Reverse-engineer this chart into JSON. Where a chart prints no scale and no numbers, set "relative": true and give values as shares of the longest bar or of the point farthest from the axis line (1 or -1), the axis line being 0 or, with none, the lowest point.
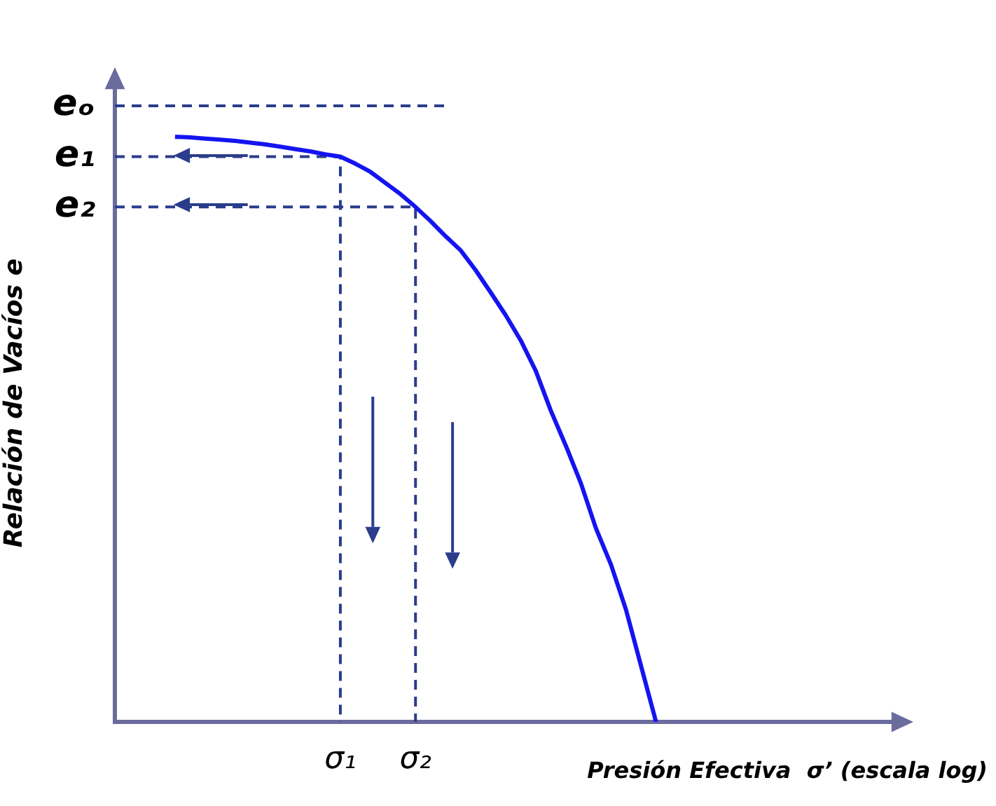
{
  "chart_data": {
    "type": "line",
    "relative": true,
    "xlabel": "Presión Efectiva  σ’ (escala log)",
    "ylabel": "Relación de Vacíos e",
    "categories": [
      null,
      null,
      null,
      null,
      null,
      null,
      null,
      null,
      null,
      null,
      null,
      null,
      null,
      null,
      null,
      "σ₁",
      null,
      null,
      null,
      null,
      "σ₂",
      null,
      null,
      null,
      null,
      null,
      null,
      null,
      null,
      null,
      null,
      null,
      null,
      null,
      null,
      null,
      null,
      null,
      null,
      null,
      null,
      null,
      null,
      null,
      null,
      null,
      null,
      null,
      null,
      null,
      null,
      null,
      null
    ],
    "grid": false,
    "legend": false,
    "marker": "none",
    "ref_lines": [
      {
        "axis": "y",
        "value": 1.053,
        "label": "eₒ",
        "color": "#2a3d8c",
        "line_style": "dashed"
      },
      {
        "axis": "y",
        "value": 0.966,
        "label": "e₁",
        "color": "#2a3d8c",
        "line_style": "dashed"
      },
      {
        "axis": "y",
        "value": 0.88,
        "label": "e₂",
        "color": "#2a3d8c",
        "line_style": "dashed"
      }
    ],
    "series": [
      {
        "color": "#1414f0",
        "line_style": "solid",
        "values": [
          null,
          null,
          null,
          null,
          1.0,
          0.999,
          0.997,
          0.995,
          0.993,
          0.99,
          0.987,
          0.983,
          0.979,
          0.975,
          0.97,
          0.966,
          0.954,
          0.94,
          0.921,
          0.902,
          0.88,
          0.856,
          0.83,
          0.806,
          0.772,
          0.734,
          0.695,
          0.652,
          0.6,
          0.532,
          0.472,
          0.408,
          0.331,
          0.269,
          0.192,
          0.096,
          0,
          null,
          null,
          null,
          null,
          null,
          null,
          null,
          null,
          null,
          null,
          null,
          null,
          null,
          null,
          null,
          null
        ]
      }
    ]
  }
}
